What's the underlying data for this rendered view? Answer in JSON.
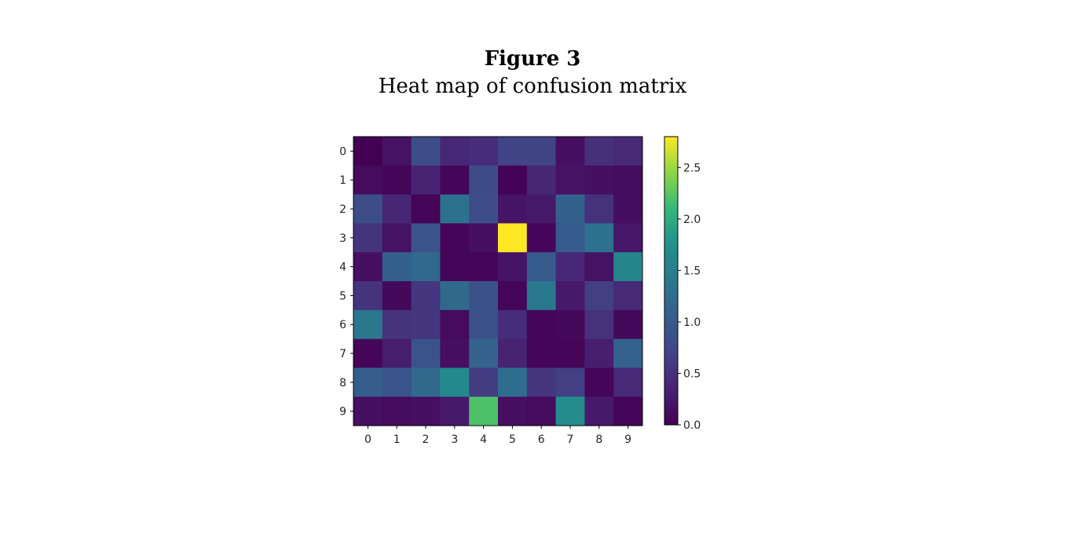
{
  "figure": {
    "label": "Figure 3",
    "caption": "Heat map of confusion matrix"
  },
  "chart_data": {
    "type": "heatmap",
    "colormap": "viridis",
    "x_labels": [
      "0",
      "1",
      "2",
      "3",
      "4",
      "5",
      "6",
      "7",
      "8",
      "9"
    ],
    "y_labels": [
      "0",
      "1",
      "2",
      "3",
      "4",
      "5",
      "6",
      "7",
      "8",
      "9"
    ],
    "values": [
      [
        0.0,
        0.18,
        0.82,
        0.4,
        0.45,
        0.7,
        0.7,
        0.15,
        0.48,
        0.42
      ],
      [
        0.1,
        0.05,
        0.35,
        0.05,
        0.8,
        0.02,
        0.38,
        0.18,
        0.15,
        0.12
      ],
      [
        0.82,
        0.38,
        0.03,
        1.3,
        0.82,
        0.2,
        0.25,
        1.08,
        0.5,
        0.12
      ],
      [
        0.52,
        0.18,
        0.92,
        0.05,
        0.15,
        2.8,
        0.05,
        1.0,
        1.3,
        0.22
      ],
      [
        0.15,
        1.08,
        1.18,
        0.05,
        0.05,
        0.2,
        1.0,
        0.4,
        0.18,
        1.6
      ],
      [
        0.52,
        0.08,
        0.55,
        1.2,
        0.88,
        0.05,
        1.4,
        0.25,
        0.65,
        0.42
      ],
      [
        1.4,
        0.52,
        0.55,
        0.1,
        0.88,
        0.45,
        0.05,
        0.08,
        0.5,
        0.08
      ],
      [
        0.05,
        0.3,
        0.9,
        0.15,
        1.1,
        0.35,
        0.05,
        0.05,
        0.3,
        1.1
      ],
      [
        1.05,
        0.9,
        1.2,
        1.65,
        0.62,
        1.25,
        0.55,
        0.65,
        0.05,
        0.42
      ],
      [
        0.15,
        0.1,
        0.15,
        0.25,
        2.2,
        0.15,
        0.1,
        1.7,
        0.25,
        0.05
      ]
    ],
    "colorbar": {
      "vmin": 0.0,
      "vmax": 2.8,
      "ticks": [
        0.0,
        0.5,
        1.0,
        1.5,
        2.0,
        2.5
      ],
      "tick_labels": [
        "0.0",
        "0.5",
        "1.0",
        "1.5",
        "2.0",
        "2.5"
      ]
    }
  }
}
